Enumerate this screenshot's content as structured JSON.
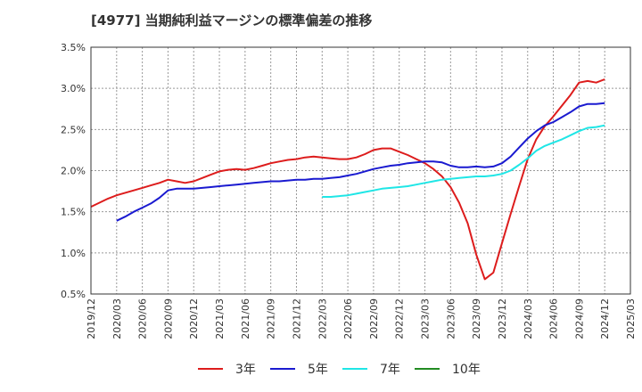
{
  "chart_data": {
    "type": "line",
    "title": "[4977]  当期純利益マージンの標準偏差の推移",
    "x": [
      "2019/12",
      "2020/03",
      "2020/06",
      "2020/09",
      "2020/12",
      "2021/03",
      "2021/06",
      "2021/09",
      "2021/12",
      "2022/03",
      "2022/06",
      "2022/09",
      "2022/12",
      "2023/03",
      "2023/06",
      "2023/09",
      "2023/12",
      "2024/03",
      "2024/06",
      "2024/09",
      "2024/12",
      "2025/03"
    ],
    "ylim": [
      0.5,
      3.5
    ],
    "yticks": [
      "0.5%",
      "1.0%",
      "1.5%",
      "2.0%",
      "2.5%",
      "3.0%",
      "3.5%"
    ],
    "grid": true,
    "legend_position": "bottom",
    "series": [
      {
        "name": "3年",
        "color": "#dd1c1c",
        "x": [
          "2019/12",
          "2020/01",
          "2020/02",
          "2020/03",
          "2020/04",
          "2020/05",
          "2020/06",
          "2020/07",
          "2020/08",
          "2020/09",
          "2020/10",
          "2020/11",
          "2020/12",
          "2021/01",
          "2021/02",
          "2021/03",
          "2021/04",
          "2021/05",
          "2021/06",
          "2021/07",
          "2021/08",
          "2021/09",
          "2021/10",
          "2021/11",
          "2021/12",
          "2022/01",
          "2022/02",
          "2022/03",
          "2022/04",
          "2022/05",
          "2022/06",
          "2022/07",
          "2022/08",
          "2022/09",
          "2022/10",
          "2022/11",
          "2022/12",
          "2023/01",
          "2023/02",
          "2023/03",
          "2023/04",
          "2023/05",
          "2023/06",
          "2023/07",
          "2023/08",
          "2023/09",
          "2023/10",
          "2023/11",
          "2023/12",
          "2024/01",
          "2024/02",
          "2024/03",
          "2024/04",
          "2024/05",
          "2024/06",
          "2024/07",
          "2024/08",
          "2024/09",
          "2024/10",
          "2024/11",
          "2024/12"
        ],
        "values": [
          1.56,
          1.61,
          1.66,
          1.7,
          1.73,
          1.76,
          1.79,
          1.82,
          1.85,
          1.89,
          1.87,
          1.85,
          1.87,
          1.91,
          1.95,
          1.99,
          2.01,
          2.02,
          2.01,
          2.03,
          2.06,
          2.09,
          2.11,
          2.13,
          2.14,
          2.16,
          2.17,
          2.16,
          2.15,
          2.14,
          2.14,
          2.16,
          2.2,
          2.25,
          2.27,
          2.27,
          2.23,
          2.19,
          2.14,
          2.09,
          2.02,
          1.93,
          1.8,
          1.61,
          1.36,
          0.98,
          0.68,
          0.76,
          1.12,
          1.47,
          1.81,
          2.14,
          2.38,
          2.54,
          2.66,
          2.79,
          2.92,
          3.07,
          3.09,
          3.07,
          3.11
        ]
      },
      {
        "name": "5年",
        "color": "#1a1ad0",
        "x": [
          "2020/03",
          "2020/04",
          "2020/05",
          "2020/06",
          "2020/07",
          "2020/08",
          "2020/09",
          "2020/10",
          "2020/11",
          "2020/12",
          "2021/01",
          "2021/02",
          "2021/03",
          "2021/04",
          "2021/05",
          "2021/06",
          "2021/07",
          "2021/08",
          "2021/09",
          "2021/10",
          "2021/11",
          "2021/12",
          "2022/01",
          "2022/02",
          "2022/03",
          "2022/04",
          "2022/05",
          "2022/06",
          "2022/07",
          "2022/08",
          "2022/09",
          "2022/10",
          "2022/11",
          "2022/12",
          "2023/01",
          "2023/02",
          "2023/03",
          "2023/04",
          "2023/05",
          "2023/06",
          "2023/07",
          "2023/08",
          "2023/09",
          "2023/10",
          "2023/11",
          "2023/12",
          "2024/01",
          "2024/02",
          "2024/03",
          "2024/04",
          "2024/05",
          "2024/06",
          "2024/07",
          "2024/08",
          "2024/09",
          "2024/10",
          "2024/11",
          "2024/12"
        ],
        "values": [
          1.39,
          1.44,
          1.5,
          1.55,
          1.6,
          1.67,
          1.76,
          1.78,
          1.78,
          1.78,
          1.79,
          1.8,
          1.81,
          1.82,
          1.83,
          1.84,
          1.85,
          1.86,
          1.87,
          1.87,
          1.88,
          1.89,
          1.89,
          1.9,
          1.9,
          1.91,
          1.92,
          1.94,
          1.96,
          1.99,
          2.02,
          2.04,
          2.06,
          2.07,
          2.09,
          2.1,
          2.11,
          2.11,
          2.1,
          2.06,
          2.04,
          2.04,
          2.05,
          2.04,
          2.05,
          2.09,
          2.17,
          2.28,
          2.39,
          2.48,
          2.55,
          2.59,
          2.65,
          2.71,
          2.78,
          2.81,
          2.81,
          2.82
        ]
      },
      {
        "name": "7年",
        "color": "#1fe6e6",
        "x": [
          "2022/03",
          "2022/04",
          "2022/05",
          "2022/06",
          "2022/07",
          "2022/08",
          "2022/09",
          "2022/10",
          "2022/11",
          "2022/12",
          "2023/01",
          "2023/02",
          "2023/03",
          "2023/04",
          "2023/05",
          "2023/06",
          "2023/07",
          "2023/08",
          "2023/09",
          "2023/10",
          "2023/11",
          "2023/12",
          "2024/01",
          "2024/02",
          "2024/03",
          "2024/04",
          "2024/05",
          "2024/06",
          "2024/07",
          "2024/08",
          "2024/09",
          "2024/10",
          "2024/11",
          "2024/12"
        ],
        "values": [
          1.68,
          1.68,
          1.69,
          1.7,
          1.72,
          1.74,
          1.76,
          1.78,
          1.79,
          1.8,
          1.81,
          1.83,
          1.85,
          1.87,
          1.89,
          1.9,
          1.91,
          1.92,
          1.93,
          1.93,
          1.94,
          1.96,
          2.0,
          2.07,
          2.15,
          2.24,
          2.3,
          2.34,
          2.38,
          2.43,
          2.48,
          2.52,
          2.53,
          2.55
        ]
      },
      {
        "name": "10年",
        "color": "#228b22",
        "x": [],
        "values": []
      }
    ]
  }
}
